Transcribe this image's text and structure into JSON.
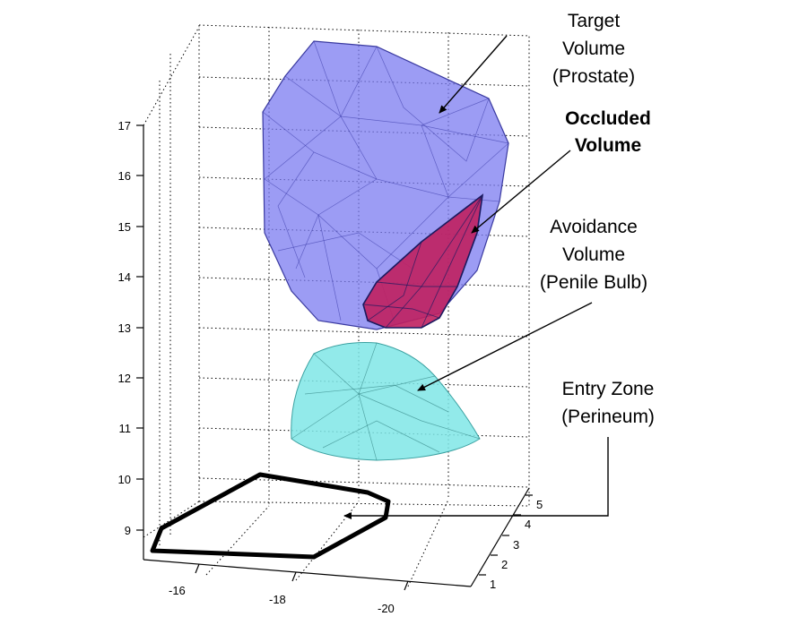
{
  "figure": {
    "annotations": {
      "target": [
        "Target",
        "Volume",
        "(Prostate)"
      ],
      "occluded": [
        "Occluded",
        "Volume"
      ],
      "avoidance": [
        "Avoidance",
        "Volume",
        "(Penile Bulb)"
      ],
      "entry": [
        "Entry Zone",
        "(Perineum)"
      ]
    },
    "z_ticks": [
      "17",
      "16",
      "15",
      "14",
      "13",
      "12",
      "11",
      "10",
      "9"
    ],
    "x_ticks": [
      "-16",
      "-18",
      "-20"
    ],
    "y_ticks": [
      "5",
      "4",
      "3",
      "2",
      "1"
    ],
    "colors": {
      "target_fill": "#7b7bf0",
      "occluded_fill": "#c0205f",
      "avoidance_fill": "#7fe6e6",
      "entry_outline": "#000000"
    }
  }
}
